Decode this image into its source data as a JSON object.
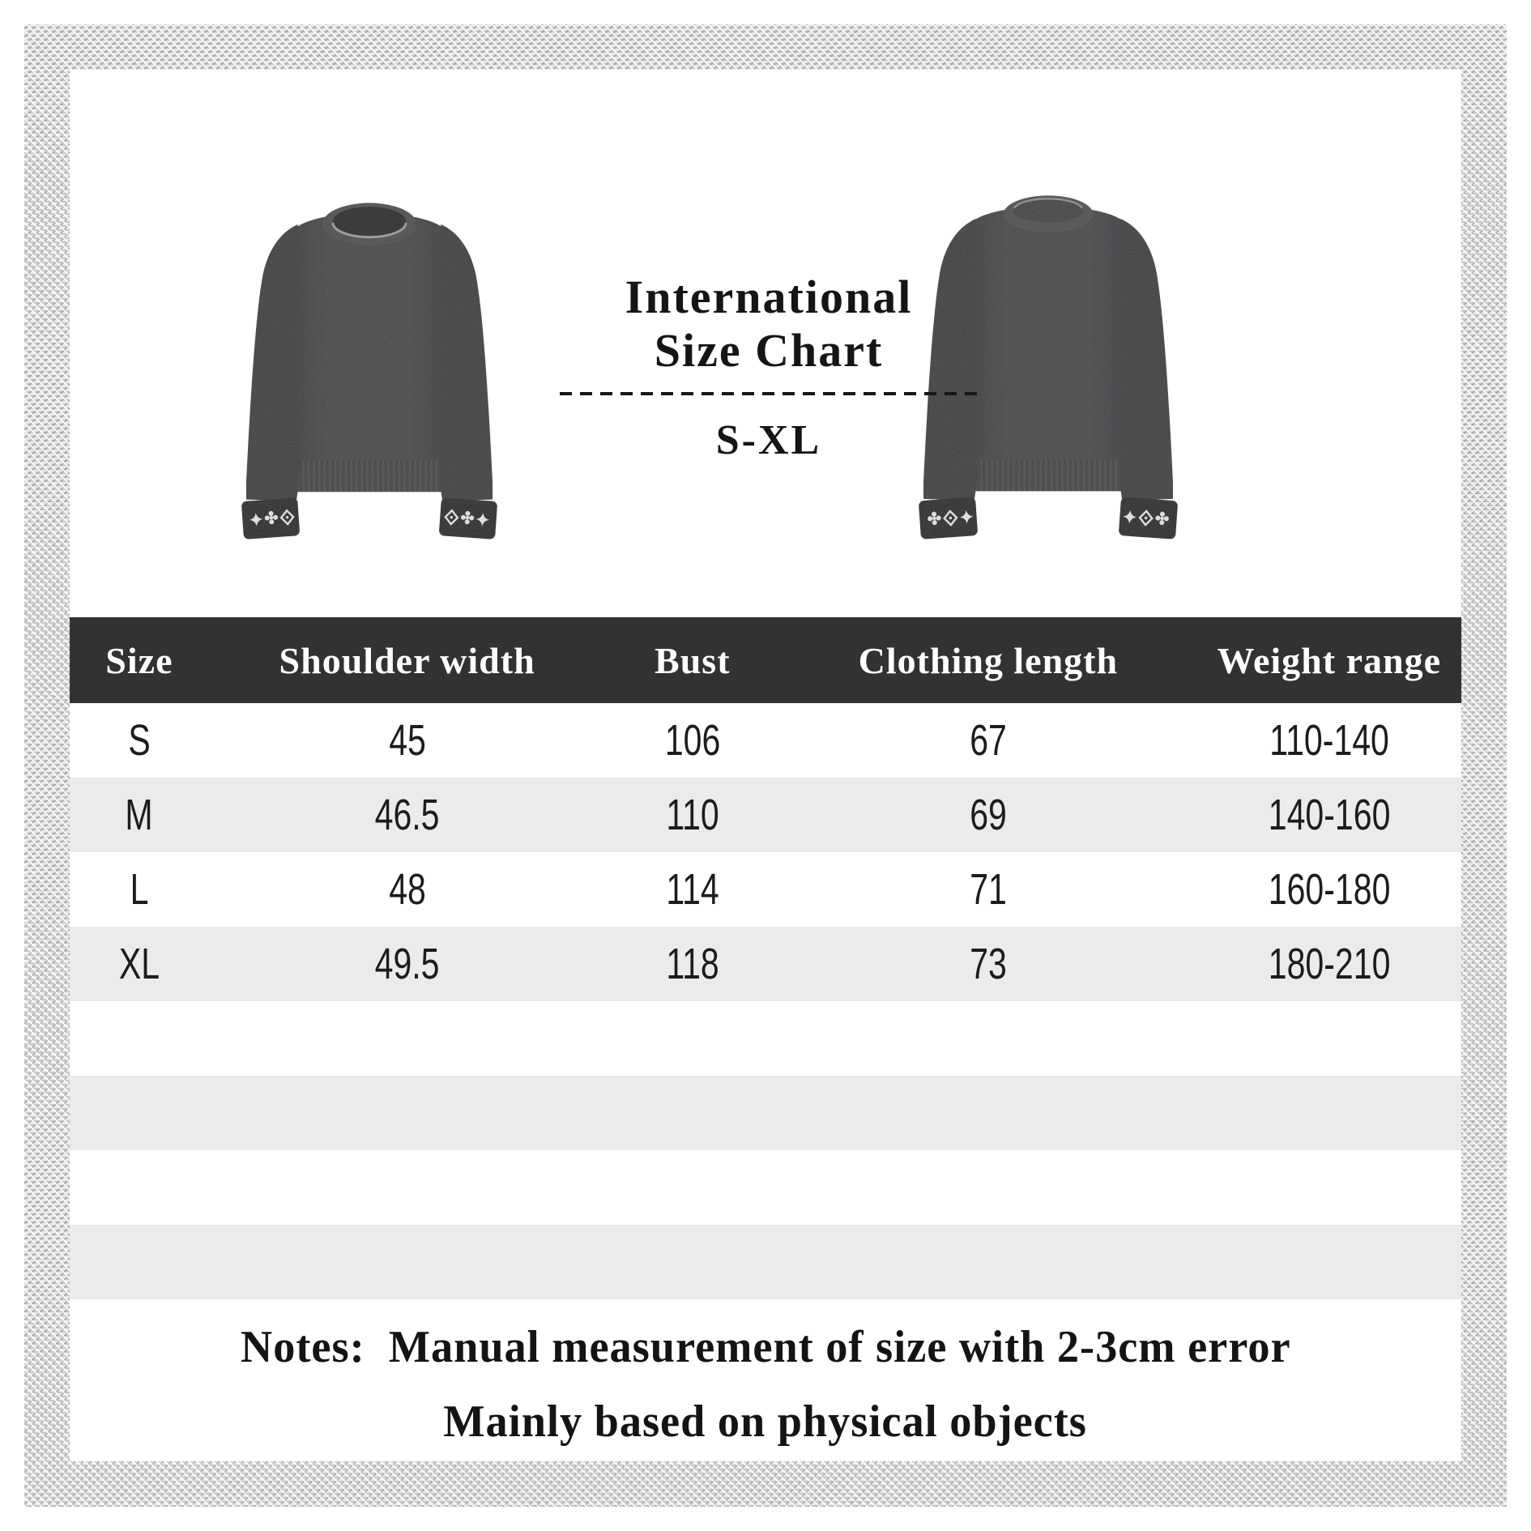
{
  "poster": {
    "title_line1": "International",
    "title_line2": "Size Chart",
    "size_range": "S-XL",
    "notes_line1": "Notes:  Manual measurement of size with 2-3cm error",
    "notes_line2": "Mainly based on physical objects"
  },
  "table": {
    "headers": [
      "Size",
      "Shoulder width",
      "Bust",
      "Clothing length",
      "Weight range"
    ],
    "rows": [
      [
        "S",
        "45",
        "106",
        "67",
        "110-140"
      ],
      [
        "M",
        "46.5",
        "110",
        "69",
        "140-160"
      ],
      [
        "L",
        "48",
        "114",
        "71",
        "160-180"
      ],
      [
        "XL",
        "49.5",
        "118",
        "73",
        "180-210"
      ]
    ],
    "empty_row_count": 4
  },
  "images": {
    "front_alt": "dark gray crewneck sweater, front view, monogram cuffs",
    "back_alt": "dark gray crewneck sweater, back view, monogram cuffs"
  },
  "colors": {
    "header_bg": "#323232",
    "header_text": "#ffffff",
    "stripe": "#ebebeb",
    "cell_text": "#1c1c1c",
    "border_base": "#d7d7d7",
    "sweater_body": "#3d3d3f",
    "sweater_sleeve": "#353537",
    "cuff_black": "#131315",
    "motif_white": "#dedede"
  }
}
